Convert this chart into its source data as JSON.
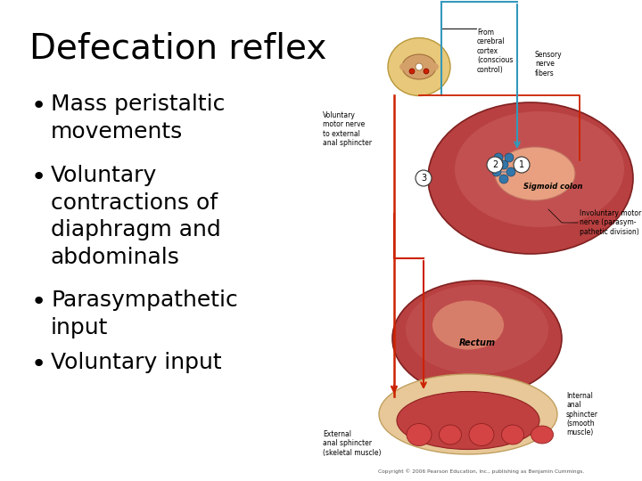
{
  "title": "Defecation reflex",
  "title_fontsize": 28,
  "title_fontfamily": "Comic Sans MS",
  "title_color": "#000000",
  "background_color": "#ffffff",
  "bullets": [
    "Mass peristaltic\nmovements",
    "Voluntary\ncontractions of\ndiaphragm and\nabdominals",
    "Parasympathetic\ninput",
    "Voluntary input"
  ],
  "bullet_fontsize": 18,
  "bullet_fontfamily": "Comic Sans MS",
  "bullet_color": "#000000",
  "bullet_symbol": "•",
  "copyright_text": "Copyright © 2006 Pearson Education, Inc., publishing as Benjamin Cummings."
}
